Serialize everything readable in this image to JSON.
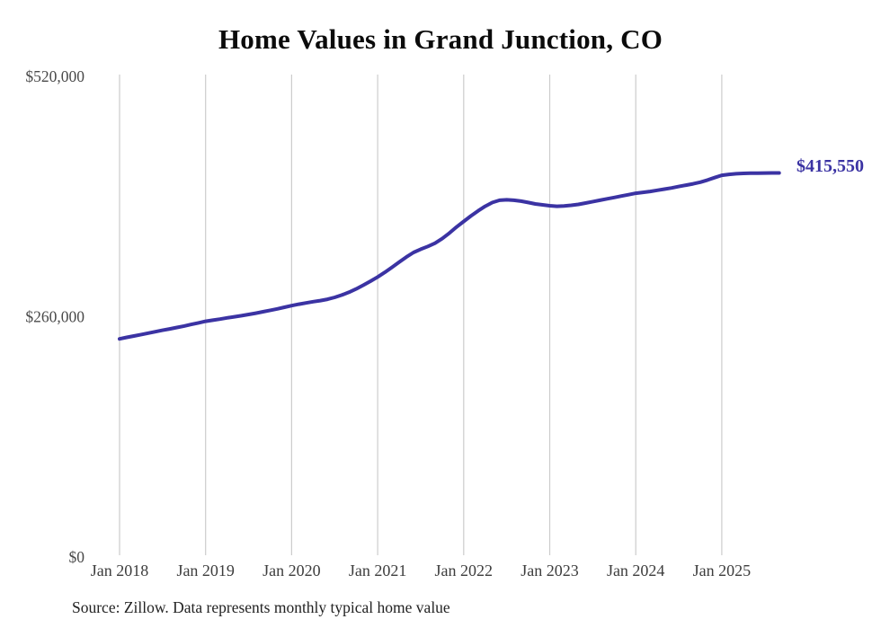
{
  "chart_data": {
    "type": "line",
    "title": "Home Values in Grand Junction, CO",
    "xlabel": "",
    "ylabel": "",
    "ylim": [
      0,
      520000
    ],
    "grid": "vertical-only",
    "legend": "none",
    "x_ticks": [
      "Jan 2018",
      "Jan 2019",
      "Jan 2020",
      "Jan 2021",
      "Jan 2022",
      "Jan 2023",
      "Jan 2024",
      "Jan 2025"
    ],
    "y_ticks": [
      {
        "value": 0,
        "label": "$0"
      },
      {
        "value": 260000,
        "label": "$260,000"
      },
      {
        "value": 520000,
        "label": "$520,000"
      }
    ],
    "end_label": "$415,550",
    "latest_value": 415550,
    "series": [
      {
        "name": "Typical home value",
        "start": "Jan 2018",
        "freq": "monthly",
        "values": [
          236000,
          237600,
          239100,
          240700,
          242200,
          243800,
          245300,
          246800,
          248300,
          249900,
          251600,
          253300,
          255000,
          256200,
          257400,
          258700,
          259900,
          261100,
          262400,
          263800,
          265300,
          266900,
          268500,
          270200,
          272000,
          273500,
          274900,
          276200,
          277400,
          278900,
          280900,
          283400,
          286400,
          290000,
          294100,
          298400,
          303000,
          308000,
          313500,
          319000,
          324500,
          329500,
          333000,
          336000,
          339500,
          344500,
          350500,
          357000,
          363000,
          369000,
          374500,
          379500,
          383500,
          386000,
          386500,
          386000,
          385000,
          383500,
          382000,
          381000,
          380000,
          379500,
          379800,
          380500,
          381500,
          383000,
          384500,
          386000,
          387500,
          389000,
          390500,
          392000,
          393500,
          394500,
          395500,
          396800,
          398000,
          399300,
          400800,
          402300,
          403800,
          405500,
          407800,
          410500,
          413000,
          414000,
          414600,
          415000,
          415200,
          415350,
          415450,
          415500,
          415550
        ]
      }
    ],
    "colors": {
      "line": "#3b33a3",
      "grid": "#cccccc",
      "x_tick_text": "#3d3d3d",
      "y_tick_text": "#4a4a4a",
      "title_text": "#0b0b0b",
      "source_text": "#222222",
      "background": "#ffffff"
    }
  },
  "source_note": "Source: Zillow. Data represents monthly typical home value"
}
